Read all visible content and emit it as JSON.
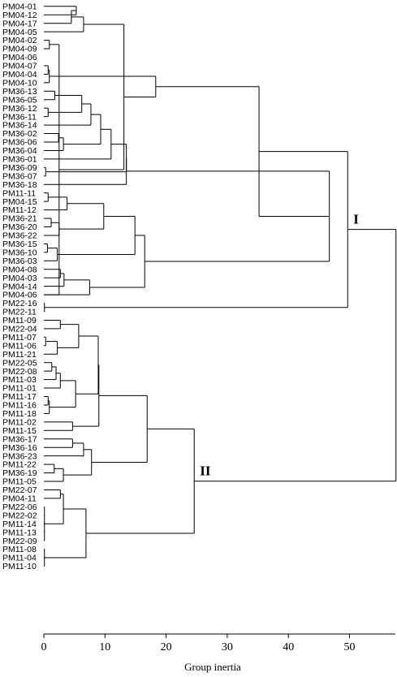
{
  "chart_data": {
    "type": "dendrogram",
    "xlabel": "Group inertia",
    "xlim": [
      0,
      57.5
    ],
    "xticks": [
      0,
      10,
      20,
      30,
      40,
      50
    ],
    "leaves": [
      "PM04-01",
      "PM04-12",
      "PM04-17",
      "PM04-05",
      "PM04-02",
      "PM04-09",
      "PM04-06",
      "PM04-07",
      "PM04-04",
      "PM04-10",
      "PM36-13",
      "PM36-05",
      "PM36-12",
      "PM36-11",
      "PM36-14",
      "PM36-02",
      "PM36-06",
      "PM36-04",
      "PM36-01",
      "PM36-09",
      "PM36-07",
      "PM36-18",
      "PM11-11",
      "PM04-15",
      "PM11-12",
      "PM36-21",
      "PM36-20",
      "PM36-22",
      "PM36-15",
      "PM36-10",
      "PM36-03",
      "PM04-08",
      "PM04-03",
      "PM04-14",
      "PM04-06",
      "PM22-16",
      "PM22-11",
      "PM11-09",
      "PM22-04",
      "PM11-07",
      "PM11-06",
      "PM11-21",
      "PM22-05",
      "PM22-08",
      "PM11-03",
      "PM11-01",
      "PM11-17",
      "PM11-16",
      "PM11-18",
      "PM11-02",
      "PM11-15",
      "PM36-17",
      "PM36-16",
      "PM36-23",
      "PM11-22",
      "PM36-19",
      "PM11-05",
      "PM22-07",
      "PM04-11",
      "PM22-06",
      "PM22-02",
      "PM11-14",
      "PM11-13",
      "PM22-09",
      "PM11-08",
      "PM11-04",
      "PM11-10"
    ],
    "merges": [
      {
        "id": "a1",
        "children": [
          "PM04-01",
          "PM04-12"
        ],
        "height": 5.3
      },
      {
        "id": "a2",
        "children": [
          "a1",
          "PM04-17"
        ],
        "height": 4.5
      },
      {
        "id": "a3",
        "children": [
          "a2",
          "PM04-05"
        ],
        "height": 6.5
      },
      {
        "id": "a4",
        "children": [
          "PM04-02",
          "PM04-09"
        ],
        "height": 0.9
      },
      {
        "id": "a5",
        "children": [
          "a4",
          "PM04-06"
        ],
        "height": 2.5
      },
      {
        "id": "a6",
        "children": [
          "a3",
          "a5"
        ],
        "height": 13.1
      },
      {
        "id": "a7",
        "children": [
          "PM04-07",
          "PM04-04"
        ],
        "height": 0.7
      },
      {
        "id": "a8",
        "children": [
          "a7",
          "PM04-10"
        ],
        "height": 0.9
      },
      {
        "id": "a9",
        "children": [
          "a6",
          "a8"
        ],
        "height": 18.3
      },
      {
        "id": "b1",
        "children": [
          "PM36-13",
          "PM36-05"
        ],
        "height": 1.8
      },
      {
        "id": "b2",
        "children": [
          "PM36-12",
          "PM36-11"
        ],
        "height": 0.7
      },
      {
        "id": "b3",
        "children": [
          "b1",
          "b2"
        ],
        "height": 6.2
      },
      {
        "id": "b4",
        "children": [
          "b3",
          "PM36-14"
        ],
        "height": 7.7
      },
      {
        "id": "b5",
        "children": [
          "PM36-02",
          "PM36-06"
        ],
        "height": 2.4
      },
      {
        "id": "b6",
        "children": [
          "b5",
          "PM36-04"
        ],
        "height": 3.2
      },
      {
        "id": "b7",
        "children": [
          "b4",
          "b6"
        ],
        "height": 9.3
      },
      {
        "id": "b8",
        "children": [
          "b7",
          "PM36-01"
        ],
        "height": 11.0
      },
      {
        "id": "b9",
        "children": [
          "PM36-09",
          "PM36-07"
        ],
        "height": 0.3
      },
      {
        "id": "b10",
        "children": [
          "b8",
          "b9"
        ],
        "height": 13.5
      },
      {
        "id": "b11",
        "children": [
          "b10",
          "PM36-18"
        ],
        "height": 13.5
      },
      {
        "id": "c1",
        "children": [
          "PM11-11",
          "PM04-15"
        ],
        "height": 0.7
      },
      {
        "id": "c2",
        "children": [
          "c1",
          "PM11-12"
        ],
        "height": 3.8
      },
      {
        "id": "c3",
        "children": [
          "PM36-21",
          "PM36-20"
        ],
        "height": 1.2
      },
      {
        "id": "c4",
        "children": [
          "c3",
          "PM36-22"
        ],
        "height": 2.5
      },
      {
        "id": "c5",
        "children": [
          "c2",
          "c4"
        ],
        "height": 9.8
      },
      {
        "id": "c6",
        "children": [
          "PM36-15",
          "PM36-10"
        ],
        "height": 0.6
      },
      {
        "id": "c7",
        "children": [
          "c6",
          "PM36-03"
        ],
        "height": 2.2
      },
      {
        "id": "c8",
        "children": [
          "c5",
          "c7"
        ],
        "height": 14.9
      },
      {
        "id": "c9",
        "children": [
          "PM04-08",
          "PM04-03"
        ],
        "height": 2.7
      },
      {
        "id": "c10",
        "children": [
          "c9",
          "PM04-14"
        ],
        "height": 3.3
      },
      {
        "id": "c11",
        "children": [
          "c10",
          "PM04-06"
        ],
        "height": 7.5
      },
      {
        "id": "c12",
        "children": [
          "c8",
          "c11"
        ],
        "height": 16.5
      },
      {
        "id": "d1",
        "children": [
          "b11",
          "c12"
        ],
        "height": 46.7
      },
      {
        "id": "d2",
        "children": [
          "a9",
          "d1"
        ],
        "height": 35.2
      },
      {
        "id": "d3",
        "children": [
          "PM22-16",
          "PM22-11"
        ],
        "height": 0.1
      },
      {
        "id": "I",
        "children": [
          "d2",
          "d3"
        ],
        "height": 49.7
      },
      {
        "id": "e1",
        "children": [
          "PM11-09",
          "PM22-04"
        ],
        "height": 2.7
      },
      {
        "id": "e2",
        "children": [
          "PM11-07",
          "PM11-06"
        ],
        "height": 0.3
      },
      {
        "id": "e3",
        "children": [
          "e2",
          "PM11-21"
        ],
        "height": 2.2
      },
      {
        "id": "e4",
        "children": [
          "e1",
          "e3"
        ],
        "height": 5.7
      },
      {
        "id": "e5",
        "children": [
          "PM22-05",
          "PM22-08"
        ],
        "height": 1.3
      },
      {
        "id": "e6",
        "children": [
          "e5",
          "PM11-03"
        ],
        "height": 2.0
      },
      {
        "id": "e7",
        "children": [
          "e6",
          "PM11-01"
        ],
        "height": 2.7
      },
      {
        "id": "e8",
        "children": [
          "PM11-17",
          "PM11-16"
        ],
        "height": 0.7
      },
      {
        "id": "e9",
        "children": [
          "e8",
          "PM11-18"
        ],
        "height": 0.9
      },
      {
        "id": "e10",
        "children": [
          "e7",
          "e9"
        ],
        "height": 5.2
      },
      {
        "id": "e11",
        "children": [
          "e4",
          "e10"
        ],
        "height": 8.9
      },
      {
        "id": "e12",
        "children": [
          "PM11-02",
          "PM11-15"
        ],
        "height": 4.7
      },
      {
        "id": "e13",
        "children": [
          "e11",
          "e12"
        ],
        "height": 9.0
      },
      {
        "id": "f1",
        "children": [
          "PM36-17",
          "PM36-16"
        ],
        "height": 4.7
      },
      {
        "id": "f2",
        "children": [
          "f1",
          "PM36-23"
        ],
        "height": 6.5
      },
      {
        "id": "f3",
        "children": [
          "PM11-22",
          "PM36-19"
        ],
        "height": 1.7
      },
      {
        "id": "f4",
        "children": [
          "f3",
          "PM11-05"
        ],
        "height": 3.2
      },
      {
        "id": "f5",
        "children": [
          "f2",
          "f4"
        ],
        "height": 7.8
      },
      {
        "id": "f6",
        "children": [
          "e13",
          "f5"
        ],
        "height": 16.9
      },
      {
        "id": "g1",
        "children": [
          "PM22-07",
          "PM04-11"
        ],
        "height": 2.7
      },
      {
        "id": "g2",
        "children": [
          "PM22-06",
          "PM22-02",
          "PM11-14",
          "PM11-13",
          "PM22-09"
        ],
        "height": 0.1
      },
      {
        "id": "g3",
        "children": [
          "g1",
          "g2"
        ],
        "height": 3.2
      },
      {
        "id": "g4",
        "children": [
          "PM11-08",
          "PM11-04",
          "PM11-10"
        ],
        "height": 0.1
      },
      {
        "id": "g5",
        "children": [
          "g3",
          "g4"
        ],
        "height": 6.9
      },
      {
        "id": "II",
        "children": [
          "f6",
          "g5"
        ],
        "height": 24.6
      },
      {
        "id": "root",
        "children": [
          "I",
          "II"
        ],
        "height": 57.6
      }
    ],
    "cluster_labels": [
      {
        "text": "I",
        "node": "I"
      },
      {
        "text": "II",
        "node": "II"
      }
    ]
  }
}
